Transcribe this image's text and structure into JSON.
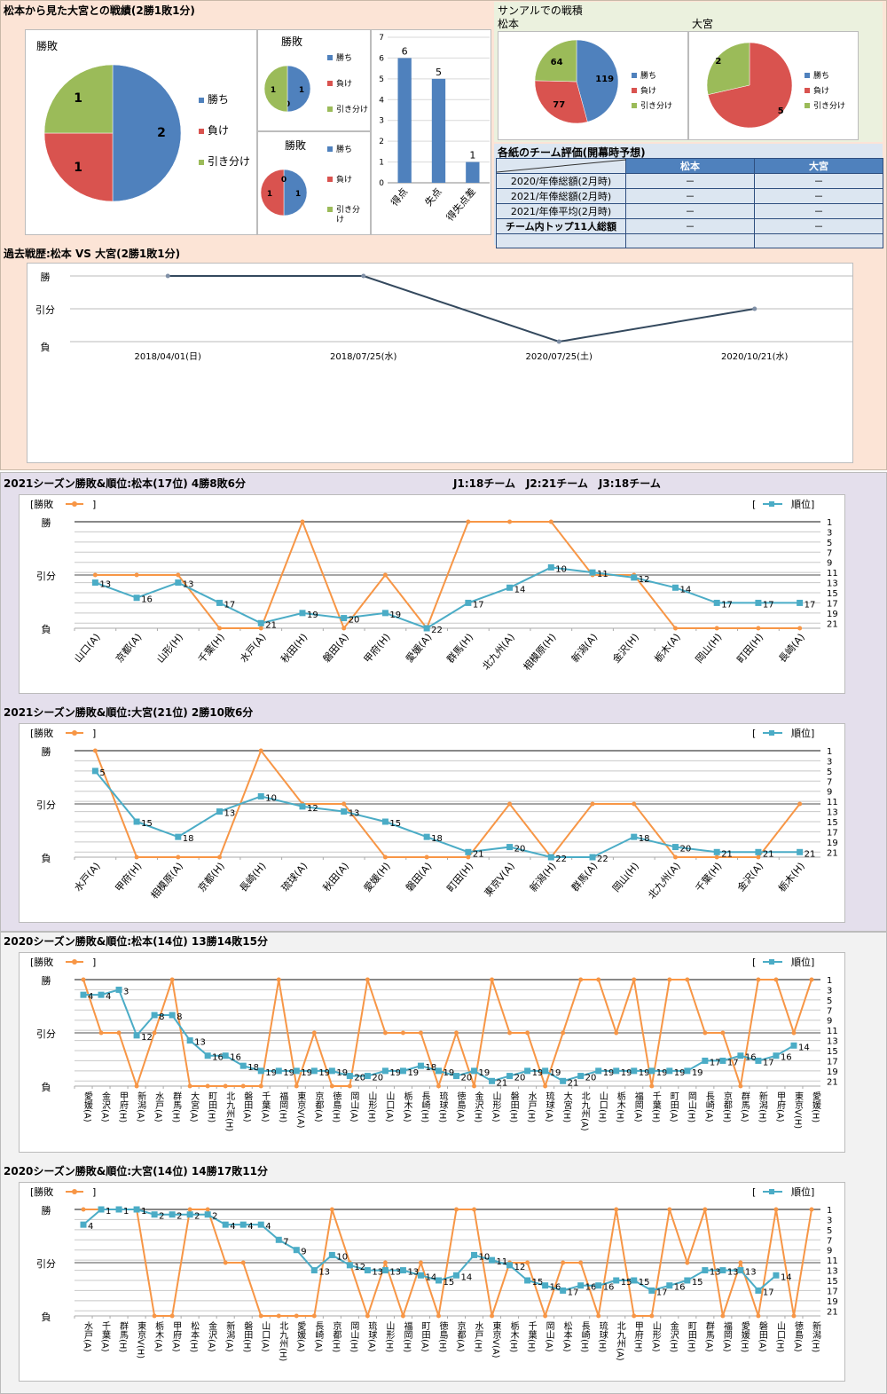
{
  "colors": {
    "win": "#4f81bd",
    "loss": "#d9534f",
    "draw": "#9bbb59",
    "result_line": "#f79646",
    "rank_line": "#4bacc6",
    "history_line": "#34495e",
    "bar": "#4f81bd"
  },
  "sections": {
    "h2h_title": "松本から見た大宮との戦績(2勝1敗1分)",
    "sample_title": "サンアルでの戦積",
    "sample_left": "松本",
    "sample_right": "大宮",
    "eval_title": "各紙のチーム評価(開幕時予想)",
    "history_title": "過去戦歴:松本 VS 大宮(2勝1敗1分)",
    "s2021m_title": "2021シーズン勝敗&順位:松本(17位) 4勝8敗6分",
    "s2021_note": "J1:18チーム　J2:21チーム　J3:18チーム",
    "s2021o_title": "2021シーズン勝敗&順位:大宮(21位) 2勝10敗6分",
    "s2020m_title": "2020シーズン勝敗&順位:松本(14位) 13勝14敗15分",
    "s2020o_title": "2020シーズン勝敗&順位:大宮(14位) 14勝17敗11分"
  },
  "legend": {
    "result": "勝敗",
    "rank": "順位",
    "win": "勝ち",
    "loss": "負け",
    "draw": "引き分け",
    "draw_wrap1": "引き分",
    "draw_wrap2": "け"
  },
  "yaxis": {
    "win": "勝",
    "draw": "引分",
    "loss": "負",
    "rank_ticks": [
      "1",
      "3",
      "5",
      "7",
      "9",
      "11",
      "13",
      "15",
      "17",
      "19",
      "21"
    ]
  },
  "eval_table": {
    "headers": [
      "",
      "松本",
      "大宮"
    ],
    "rows": [
      [
        "2020/年俸総額(2月時)",
        "－",
        "－"
      ],
      [
        "2021/年俸総額(2月時)",
        "－",
        "－"
      ],
      [
        "2021/年俸平均(2月時)",
        "－",
        "－"
      ],
      [
        "チーム内トップ11人総額",
        "－",
        "－"
      ],
      [
        "",
        "",
        ""
      ]
    ]
  },
  "chart_data": [
    {
      "id": "h2h_pie",
      "type": "pie",
      "title": "勝敗",
      "categories": [
        "勝ち",
        "負け",
        "引き分け"
      ],
      "values": [
        2,
        1,
        1
      ]
    },
    {
      "id": "h2h_pie_small1",
      "type": "pie",
      "title": "勝敗",
      "categories": [
        "勝ち",
        "負け",
        "引き分け"
      ],
      "values": [
        1,
        0,
        1
      ]
    },
    {
      "id": "h2h_pie_small2",
      "type": "pie",
      "title": "勝敗",
      "categories": [
        "勝ち",
        "負け",
        "引き分け"
      ],
      "values": [
        1,
        1,
        0
      ]
    },
    {
      "id": "h2h_bar",
      "type": "bar",
      "categories": [
        "得点",
        "失点",
        "得失点差"
      ],
      "values": [
        6,
        5,
        1
      ],
      "ylim": [
        0,
        7
      ],
      "yticks": [
        0,
        1,
        2,
        3,
        4,
        5,
        6,
        7
      ]
    },
    {
      "id": "sample_matsumoto",
      "type": "pie",
      "title": "松本",
      "categories": [
        "勝ち",
        "負け",
        "引き分け"
      ],
      "values": [
        119,
        77,
        64
      ]
    },
    {
      "id": "sample_omiya",
      "type": "pie",
      "title": "大宮",
      "categories": [
        "勝ち",
        "負け",
        "引き分け"
      ],
      "values": [
        0,
        5,
        2
      ]
    },
    {
      "id": "history",
      "type": "line",
      "title": "過去戦歴:松本 VS 大宮(2勝1敗1分)",
      "categories": [
        "2018/04/01(日)",
        "2018/07/25(水)",
        "2020/07/25(土)",
        "2020/10/21(水)"
      ],
      "values": [
        "勝",
        "勝",
        "負",
        "引分"
      ]
    },
    {
      "id": "s2021m",
      "type": "line",
      "title": "2021シーズン勝敗&順位:松本(17位) 4勝8敗6分",
      "categories": [
        "山口(A)",
        "京都(A)",
        "山形(H)",
        "千葉(H)",
        "水戸(A)",
        "秋田(H)",
        "磐田(A)",
        "甲府(H)",
        "愛媛(A)",
        "群馬(H)",
        "北九州(A)",
        "相模原(H)",
        "新潟(A)",
        "金沢(H)",
        "栃木(A)",
        "岡山(H)",
        "町田(H)",
        "長崎(A)"
      ],
      "series": [
        {
          "name": "勝敗",
          "values": [
            "D",
            "D",
            "D",
            "L",
            "L",
            "W",
            "L",
            "D",
            "L",
            "W",
            "W",
            "W",
            "D",
            "D",
            "L",
            "L",
            "L",
            "L"
          ]
        },
        {
          "name": "順位",
          "values": [
            13,
            16,
            13,
            17,
            21,
            19,
            20,
            19,
            22,
            17,
            14,
            10,
            11,
            12,
            14,
            17,
            17,
            17
          ]
        }
      ]
    },
    {
      "id": "s2021o",
      "type": "line",
      "title": "2021シーズン勝敗&順位:大宮(21位) 2勝10敗6分",
      "categories": [
        "水戸(A)",
        "甲府(H)",
        "相模原(A)",
        "京都(H)",
        "長崎(H)",
        "琉球(A)",
        "秋田(A)",
        "愛媛(H)",
        "磐田(A)",
        "町田(H)",
        "東京V(A)",
        "新潟(H)",
        "群馬(A)",
        "岡山(H)",
        "北九州(A)",
        "千葉(H)",
        "金沢(A)",
        "栃木(H)"
      ],
      "series": [
        {
          "name": "勝敗",
          "values": [
            "W",
            "L",
            "L",
            "L",
            "W",
            "D",
            "D",
            "L",
            "L",
            "L",
            "D",
            "L",
            "D",
            "D",
            "L",
            "L",
            "L",
            "D"
          ]
        },
        {
          "name": "順位",
          "values": [
            5,
            15,
            18,
            13,
            10,
            12,
            13,
            15,
            18,
            21,
            20,
            22,
            22,
            18,
            20,
            21,
            21,
            21
          ]
        }
      ]
    },
    {
      "id": "s2020m",
      "type": "line",
      "title": "2020シーズン勝敗&順位:松本(14位) 13勝14敗15分",
      "categories": [
        "愛媛(A)",
        "金沢(A)",
        "甲府(H)",
        "新潟(A)",
        "水戸(A)",
        "群馬(H)",
        "大宮(A)",
        "町田(H)",
        "北九州(H)",
        "磐田(A)",
        "千葉(A)",
        "福岡(H)",
        "東京V(A)",
        "京都(A)",
        "徳島(H)",
        "岡山(A)",
        "山形(H)",
        "山口(A)",
        "栃木(A)",
        "長崎(H)",
        "琉球(H)",
        "徳島(A)",
        "金沢(H)",
        "山形(A)",
        "磐田(H)",
        "水戸(H)",
        "琉球(A)",
        "大宮(H)",
        "北九州(A)",
        "山口(H)",
        "栃木(H)",
        "福岡(A)",
        "千葉(H)",
        "町田(A)",
        "岡山(H)",
        "長崎(A)",
        "京都(H)",
        "群馬(A)",
        "新潟(H)",
        "甲府(A)",
        "東京V(H)",
        "愛媛(H)"
      ],
      "series": [
        {
          "name": "勝敗",
          "values": [
            "W",
            "D",
            "D",
            "L",
            "D",
            "W",
            "L",
            "L",
            "L",
            "L",
            "L",
            "W",
            "L",
            "D",
            "L",
            "L",
            "W",
            "D",
            "D",
            "D",
            "L",
            "D",
            "L",
            "W",
            "D",
            "D",
            "L",
            "D",
            "W",
            "W",
            "D",
            "W",
            "L",
            "W",
            "W",
            "D",
            "D",
            "L",
            "W",
            "W",
            "D",
            "W"
          ]
        },
        {
          "name": "順位",
          "values": [
            4,
            4,
            3,
            12,
            8,
            8,
            13,
            16,
            16,
            18,
            19,
            19,
            19,
            19,
            19,
            20,
            20,
            19,
            19,
            18,
            19,
            20,
            19,
            21,
            20,
            19,
            19,
            21,
            20,
            19,
            19,
            19,
            19,
            19,
            19,
            17,
            17,
            16,
            17,
            16,
            14,
            null
          ]
        }
      ]
    },
    {
      "id": "s2020o",
      "type": "line",
      "title": "2020シーズン勝敗&順位:大宮(14位) 14勝17敗11分",
      "categories": [
        "水戸(A)",
        "千葉(A)",
        "群馬(H)",
        "東京V(H)",
        "栃木(A)",
        "甲府(A)",
        "松本(H)",
        "金沢(A)",
        "新潟(A)",
        "磐田(H)",
        "山口(A)",
        "北九州(H)",
        "愛媛(A)",
        "長崎(A)",
        "京都(H)",
        "岡山(H)",
        "琉球(A)",
        "山形(H)",
        "福岡(H)",
        "町田(A)",
        "徳島(H)",
        "京都(A)",
        "水戸(H)",
        "東京V(A)",
        "栃木(H)",
        "千葉(H)",
        "岡山(A)",
        "松本(A)",
        "長崎(H)",
        "琉球(H)",
        "北九州(A)",
        "甲府(H)",
        "山形(A)",
        "金沢(H)",
        "町田(H)",
        "群馬(A)",
        "福岡(A)",
        "愛媛(H)",
        "磐田(A)",
        "山口(H)",
        "徳島(A)",
        "新潟(H)"
      ],
      "series": [
        {
          "name": "勝敗",
          "values": [
            "W",
            "W",
            "W",
            "W",
            "L",
            "L",
            "W",
            "W",
            "D",
            "D",
            "L",
            "L",
            "L",
            "L",
            "W",
            "D",
            "L",
            "D",
            "L",
            "D",
            "L",
            "W",
            "W",
            "L",
            "D",
            "D",
            "L",
            "D",
            "D",
            "L",
            "W",
            "L",
            "L",
            "W",
            "D",
            "W",
            "L",
            "D",
            "L",
            "W",
            "L",
            "W"
          ]
        },
        {
          "name": "順位",
          "values": [
            4,
            1,
            1,
            1,
            2,
            2,
            2,
            2,
            4,
            4,
            4,
            7,
            9,
            13,
            10,
            12,
            13,
            13,
            13,
            14,
            15,
            14,
            10,
            11,
            12,
            15,
            16,
            17,
            16,
            16,
            15,
            15,
            17,
            16,
            15,
            13,
            13,
            13,
            17,
            14,
            null,
            null
          ]
        }
      ]
    }
  ]
}
